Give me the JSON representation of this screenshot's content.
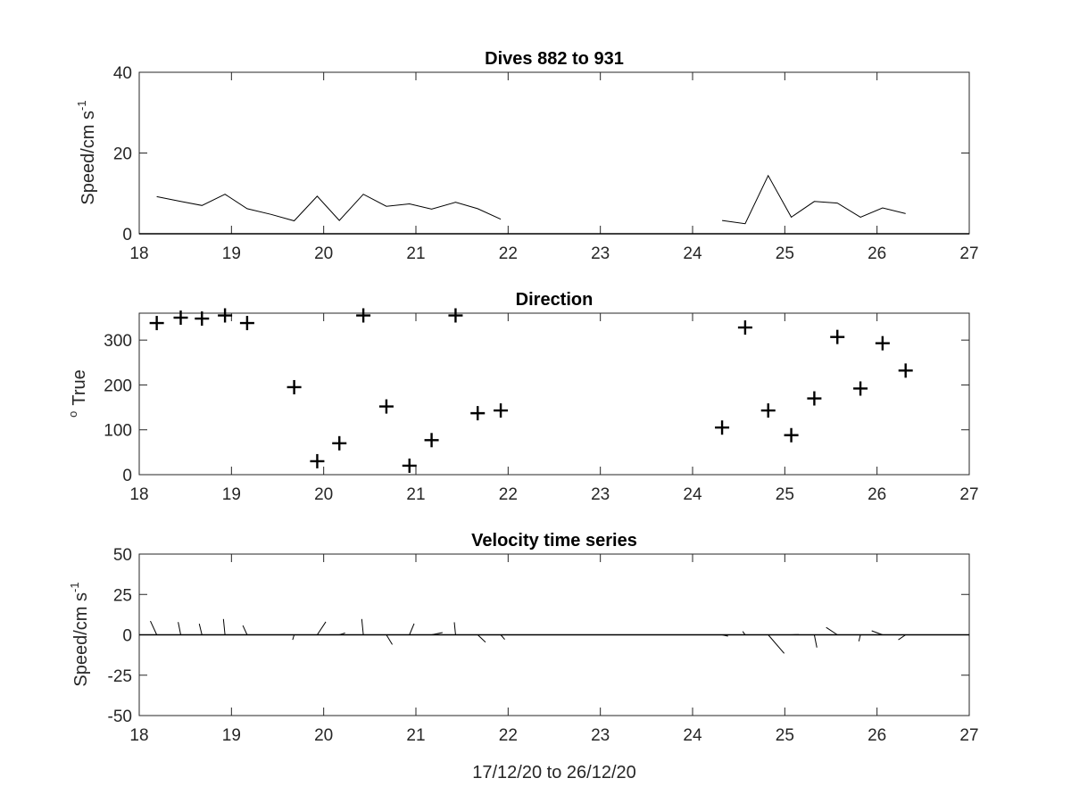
{
  "chart_data": [
    {
      "type": "line",
      "title": "Dives 882 to 931",
      "ylabel_main": "Speed/cm s",
      "ylabel_sup": "-1",
      "xlabel": "",
      "xlim": [
        18,
        27
      ],
      "ylim": [
        0,
        40
      ],
      "xticks": [
        "18",
        "19",
        "20",
        "21",
        "22",
        "23",
        "24",
        "25",
        "26",
        "27"
      ],
      "yticks": [
        "0",
        "20",
        "40"
      ],
      "series": [
        {
          "segments": [
            {
              "x": [
                18.19,
                18.45,
                18.68,
                18.93,
                19.17,
                19.43,
                19.68,
                19.93,
                20.17,
                20.43,
                20.68,
                20.93,
                21.17,
                21.43,
                21.67,
                21.92
              ],
              "y": [
                9.2,
                8.0,
                7.0,
                9.8,
                6.2,
                4.8,
                3.2,
                9.3,
                3.3,
                9.8,
                6.8,
                7.4,
                6.1,
                7.8,
                6.2,
                3.6
              ]
            },
            {
              "x": [
                24.32,
                24.57,
                24.82,
                25.07,
                25.32,
                25.57,
                25.82,
                26.06,
                26.31
              ],
              "y": [
                3.3,
                2.5,
                14.4,
                4.1,
                8.0,
                7.6,
                4.1,
                6.4,
                5.0
              ]
            }
          ]
        }
      ],
      "zero_line": true
    },
    {
      "type": "scatter",
      "title": "Direction",
      "ylabel_sup": "o",
      "ylabel_main": "True",
      "xlabel": "",
      "xlim": [
        18,
        27
      ],
      "ylim": [
        0,
        360
      ],
      "xticks": [
        "18",
        "19",
        "20",
        "21",
        "22",
        "23",
        "24",
        "25",
        "26",
        "27"
      ],
      "yticks": [
        "0",
        "100",
        "200",
        "300"
      ],
      "marker": "+",
      "x": [
        18.19,
        18.45,
        18.68,
        18.93,
        19.17,
        19.68,
        19.93,
        20.17,
        20.43,
        20.68,
        20.93,
        21.17,
        21.43,
        21.67,
        21.92,
        24.32,
        24.57,
        24.82,
        25.07,
        25.32,
        25.57,
        25.82,
        26.06,
        26.31
      ],
      "y": [
        338,
        350,
        348,
        355,
        338,
        195,
        30,
        70,
        355,
        152,
        20,
        77,
        355,
        137,
        143,
        105,
        328,
        143,
        88,
        170,
        307,
        192,
        293,
        232
      ]
    },
    {
      "type": "line",
      "title": "Velocity time series",
      "ylabel_main": "Speed/cm s",
      "ylabel_sup": "-1",
      "xlabel": "17/12/20 to 26/12/20",
      "xlim": [
        18,
        27
      ],
      "ylim": [
        -50,
        50
      ],
      "xticks": [
        "18",
        "19",
        "20",
        "21",
        "22",
        "23",
        "24",
        "25",
        "26",
        "27"
      ],
      "yticks": [
        "-50",
        "-25",
        "0",
        "25",
        "50"
      ],
      "sticks": {
        "x": [
          18.19,
          18.45,
          18.68,
          18.93,
          19.17,
          19.68,
          19.93,
          20.17,
          20.43,
          20.68,
          20.93,
          21.17,
          21.43,
          21.67,
          21.92,
          24.32,
          24.57,
          24.82,
          25.07,
          25.32,
          25.57,
          25.82,
          26.06,
          26.31
        ],
        "speed": [
          9.2,
          8.0,
          7.0,
          9.8,
          6.2,
          3.2,
          9.3,
          3.3,
          9.8,
          6.8,
          7.4,
          6.1,
          7.8,
          6.2,
          3.6,
          3.3,
          2.5,
          14.4,
          4.1,
          8.0,
          7.6,
          4.1,
          6.4,
          5.0
        ],
        "direction": [
          338,
          350,
          348,
          355,
          338,
          195,
          30,
          70,
          355,
          152,
          20,
          77,
          355,
          137,
          143,
          105,
          328,
          143,
          88,
          170,
          307,
          192,
          293,
          232
        ]
      },
      "zero_line": true
    }
  ]
}
